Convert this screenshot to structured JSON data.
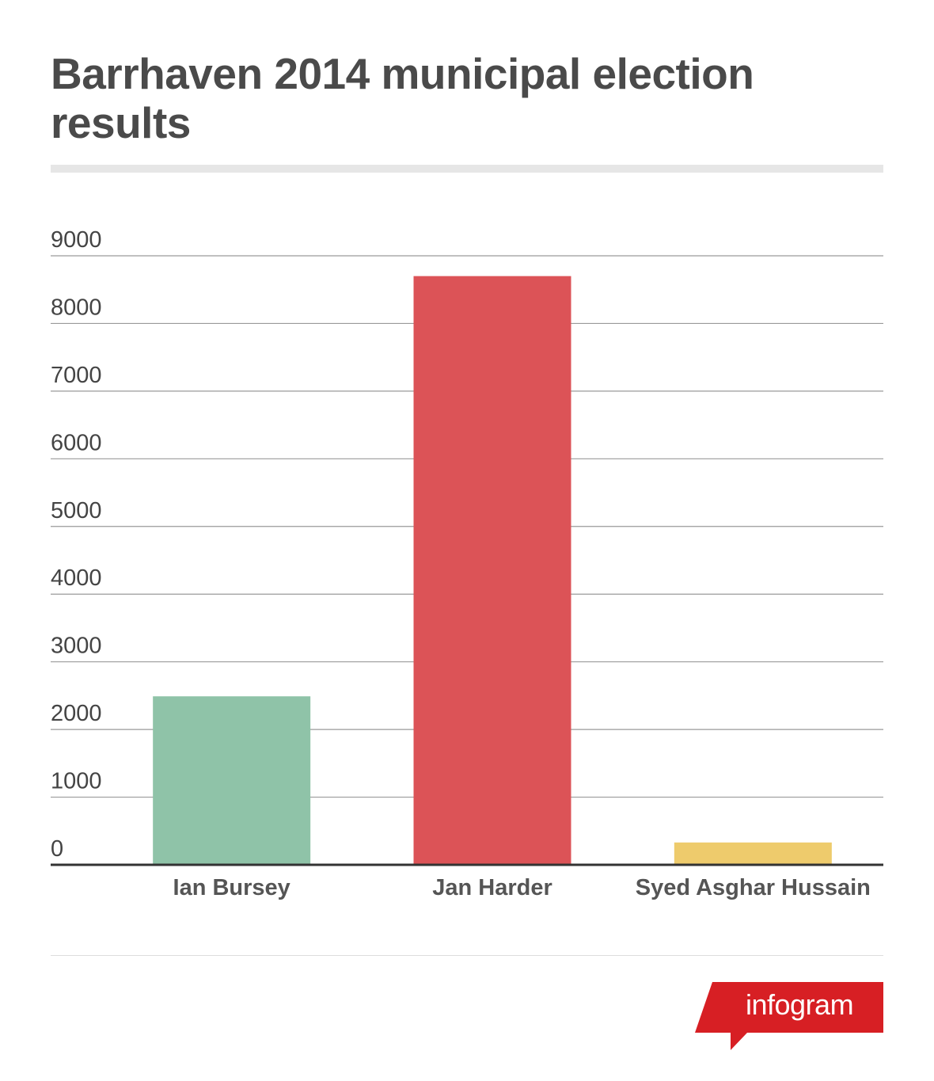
{
  "chart_data": {
    "type": "bar",
    "title": "Barrhaven 2014 municipal election results",
    "categories": [
      "Ian Bursey",
      "Jan Harder",
      "Syed Asghar Hussain"
    ],
    "values": [
      2490,
      8700,
      330
    ],
    "colors": [
      "#8fc3a8",
      "#dc5357",
      "#eecb6c"
    ],
    "yticks": [
      0,
      1000,
      2000,
      3000,
      4000,
      5000,
      6000,
      7000,
      8000,
      9000
    ],
    "ylim": [
      0,
      9000
    ],
    "xlabel": "",
    "ylabel": "",
    "grid": true,
    "legend": false
  },
  "branding": {
    "logo_text": "infogram",
    "logo_color": "#d71f24"
  }
}
